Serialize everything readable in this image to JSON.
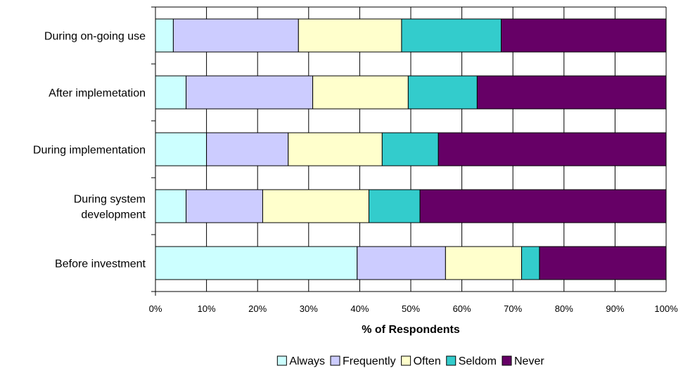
{
  "chart_data": {
    "type": "bar",
    "orientation": "horizontal",
    "stacked": "percent",
    "categories": [
      [
        "During on-going use"
      ],
      [
        "After implemetation"
      ],
      [
        "During implementation"
      ],
      [
        "During system",
        "development"
      ],
      [
        "Before investment"
      ]
    ],
    "series": [
      {
        "name": "Always",
        "color": "#ccffff",
        "values": [
          3.5,
          6,
          10,
          6,
          39.5
        ]
      },
      {
        "name": "Frequently",
        "color": "#ccccff",
        "values": [
          24.5,
          24.8,
          16,
          15,
          17.3
        ]
      },
      {
        "name": "Often",
        "color": "#ffffcc",
        "values": [
          20.2,
          18.7,
          18.4,
          20.8,
          14.9
        ]
      },
      {
        "name": "Seldom",
        "color": "#33cccc",
        "values": [
          19.5,
          13.5,
          11,
          10,
          3.5
        ]
      },
      {
        "name": "Never",
        "color": "#660066",
        "values": [
          32.3,
          37,
          44.6,
          48.2,
          24.8
        ]
      }
    ],
    "xticks": [
      "0%",
      "10%",
      "20%",
      "30%",
      "40%",
      "50%",
      "60%",
      "70%",
      "80%",
      "90%",
      "100%"
    ],
    "xlim": [
      0,
      100
    ],
    "xlabel": "% of Respondents",
    "ylabel": "",
    "grid": true,
    "legend_position": "bottom"
  }
}
